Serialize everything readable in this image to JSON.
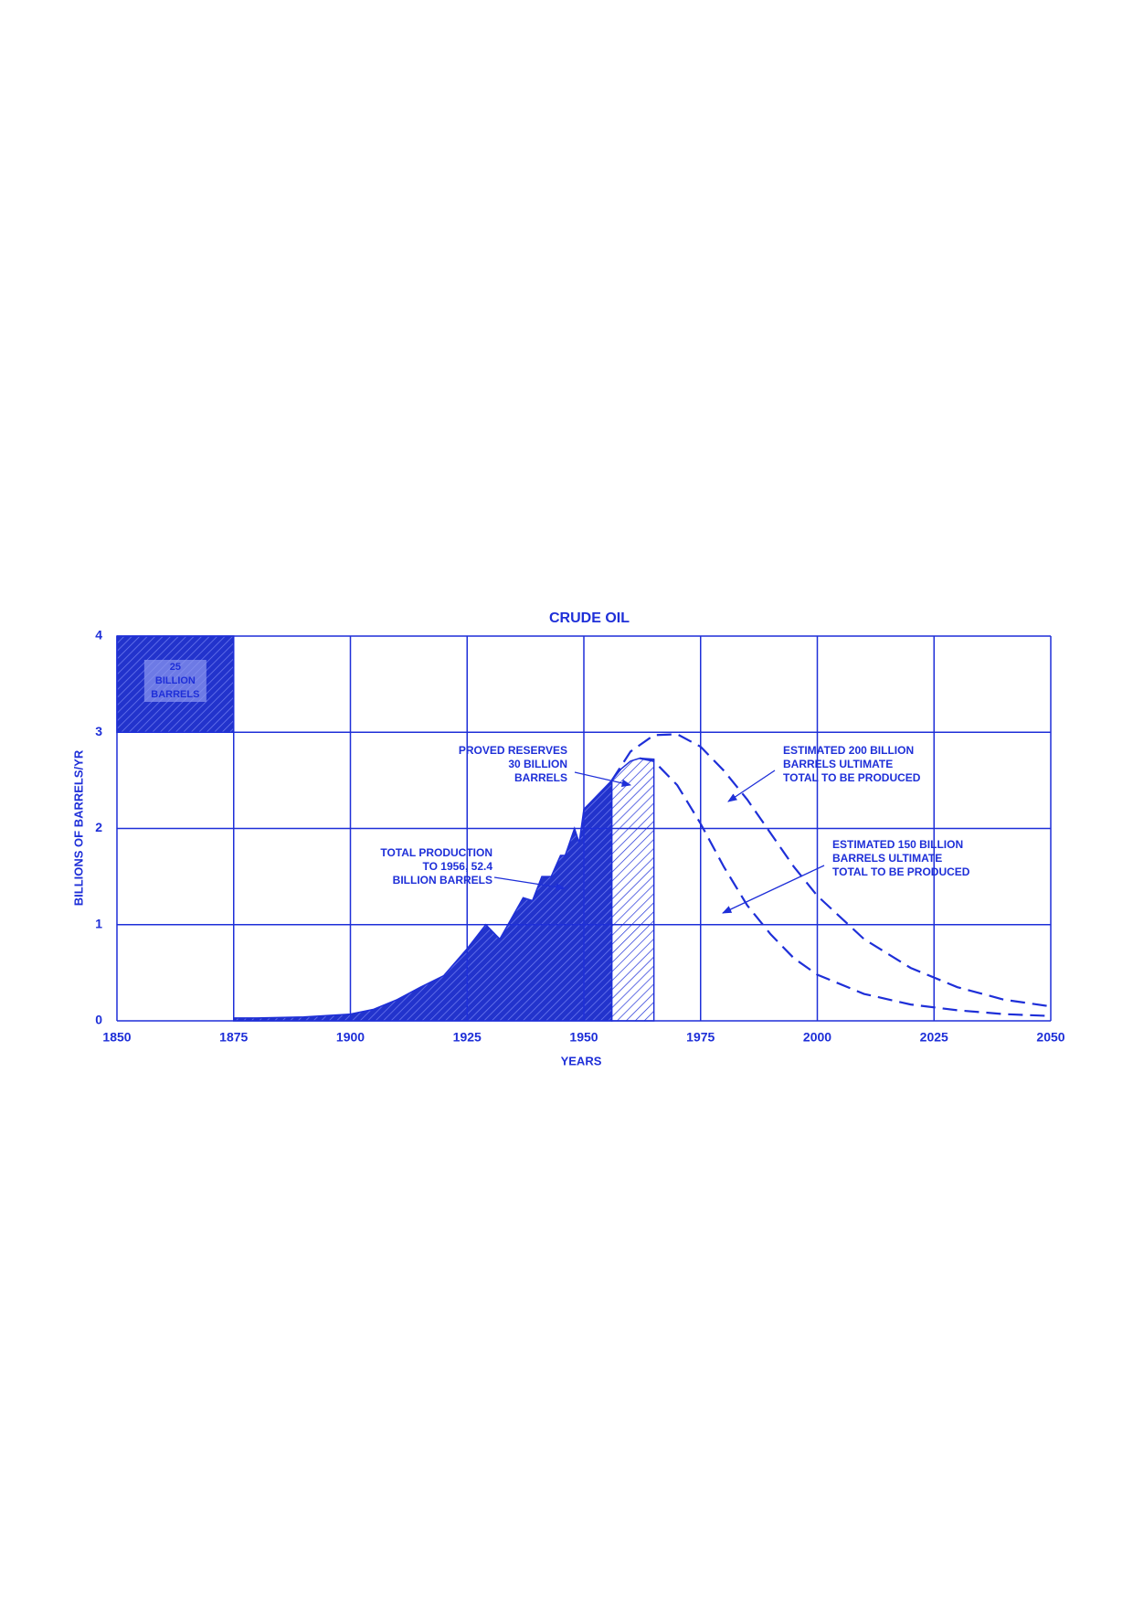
{
  "chart_data": {
    "type": "area",
    "title": "CRUDE OIL",
    "xlabel": "YEARS",
    "ylabel": "BILLIONS OF BARRELS/YR",
    "xlim": [
      1850,
      2050
    ],
    "xticks": [
      1850,
      1875,
      1900,
      1925,
      1950,
      1975,
      2000,
      2025,
      2050
    ],
    "ylim": [
      0,
      4
    ],
    "yticks": [
      0,
      1,
      2,
      3,
      4
    ],
    "grid": true,
    "color": "#1e2fd8",
    "scale_box": {
      "label": [
        "25",
        "BILLION",
        "BARRELS"
      ],
      "x": [
        1850,
        1875
      ],
      "y": [
        3,
        4
      ]
    },
    "series": [
      {
        "style": "filled",
        "color": "#1e2fd8",
        "annotation": [
          "TOTAL PRODUCTION",
          "TO 1956, 52.4",
          "BILLION BARRELS"
        ],
        "x": [
          1875,
          1880,
          1890,
          1900,
          1905,
          1910,
          1915,
          1920,
          1925,
          1929,
          1932,
          1937,
          1939,
          1941,
          1943,
          1945,
          1946,
          1948,
          1949,
          1950,
          1953,
          1956
        ],
        "values": [
          0.03,
          0.03,
          0.04,
          0.07,
          0.12,
          0.22,
          0.35,
          0.47,
          0.75,
          1.0,
          0.85,
          1.28,
          1.25,
          1.5,
          1.5,
          1.72,
          1.72,
          2.0,
          1.85,
          2.2,
          2.35,
          2.5
        ]
      },
      {
        "style": "hatched",
        "color": "#1e2fd8",
        "annotation": [
          "PROVED RESERVES",
          "30 BILLION",
          "BARRELS"
        ],
        "x": [
          1956,
          1958,
          1960,
          1962,
          1965
        ],
        "values": [
          2.5,
          2.62,
          2.7,
          2.73,
          2.72
        ]
      },
      {
        "style": "dashed",
        "color": "#1e2fd8",
        "annotation": [
          "ESTIMATED 200 BILLION",
          "BARRELS ULTIMATE",
          "TOTAL TO BE PRODUCED"
        ],
        "x": [
          1956,
          1960,
          1965,
          1970,
          1975,
          1980,
          1985,
          1990,
          1995,
          2000,
          2010,
          2020,
          2030,
          2040,
          2050
        ],
        "values": [
          2.5,
          2.8,
          2.97,
          2.98,
          2.85,
          2.6,
          2.3,
          1.95,
          1.6,
          1.3,
          0.85,
          0.55,
          0.35,
          0.22,
          0.15
        ]
      },
      {
        "style": "dashed",
        "color": "#1e2fd8",
        "annotation": [
          "ESTIMATED 150 BILLION",
          "BARRELS ULTIMATE",
          "TOTAL TO BE PRODUCED"
        ],
        "x": [
          1962,
          1965,
          1970,
          1975,
          1980,
          1985,
          1990,
          1995,
          2000,
          2010,
          2020,
          2030,
          2040,
          2050
        ],
        "values": [
          2.73,
          2.7,
          2.45,
          2.05,
          1.6,
          1.2,
          0.9,
          0.65,
          0.48,
          0.28,
          0.17,
          0.11,
          0.07,
          0.05
        ]
      }
    ]
  }
}
